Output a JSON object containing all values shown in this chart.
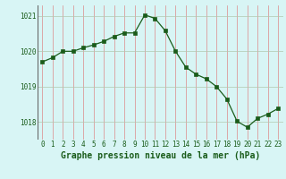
{
  "x": [
    0,
    1,
    2,
    3,
    4,
    5,
    6,
    7,
    8,
    9,
    10,
    11,
    12,
    13,
    14,
    15,
    16,
    17,
    18,
    19,
    20,
    21,
    22,
    23
  ],
  "y": [
    1019.7,
    1019.82,
    1020.0,
    1020.0,
    1020.1,
    1020.18,
    1020.28,
    1020.42,
    1020.52,
    1020.52,
    1021.03,
    1020.93,
    1020.58,
    1020.0,
    1019.55,
    1019.35,
    1019.22,
    1019.0,
    1018.65,
    1018.02,
    1017.85,
    1018.1,
    1018.22,
    1018.38
  ],
  "line_color": "#1a5c1a",
  "marker": "s",
  "marker_size": 2.2,
  "bg_color": "#d8f5f5",
  "grid_color": "#b0c8b0",
  "title": "Graphe pression niveau de la mer (hPa)",
  "title_color": "#1a5c1a",
  "ylim": [
    1017.5,
    1021.3
  ],
  "yticks": [
    1018,
    1019,
    1020,
    1021
  ],
  "xlim": [
    -0.5,
    23.5
  ],
  "xticks": [
    0,
    1,
    2,
    3,
    4,
    5,
    6,
    7,
    8,
    9,
    10,
    11,
    12,
    13,
    14,
    15,
    16,
    17,
    18,
    19,
    20,
    21,
    22,
    23
  ],
  "tick_fontsize": 5.5,
  "title_fontsize": 7.0
}
